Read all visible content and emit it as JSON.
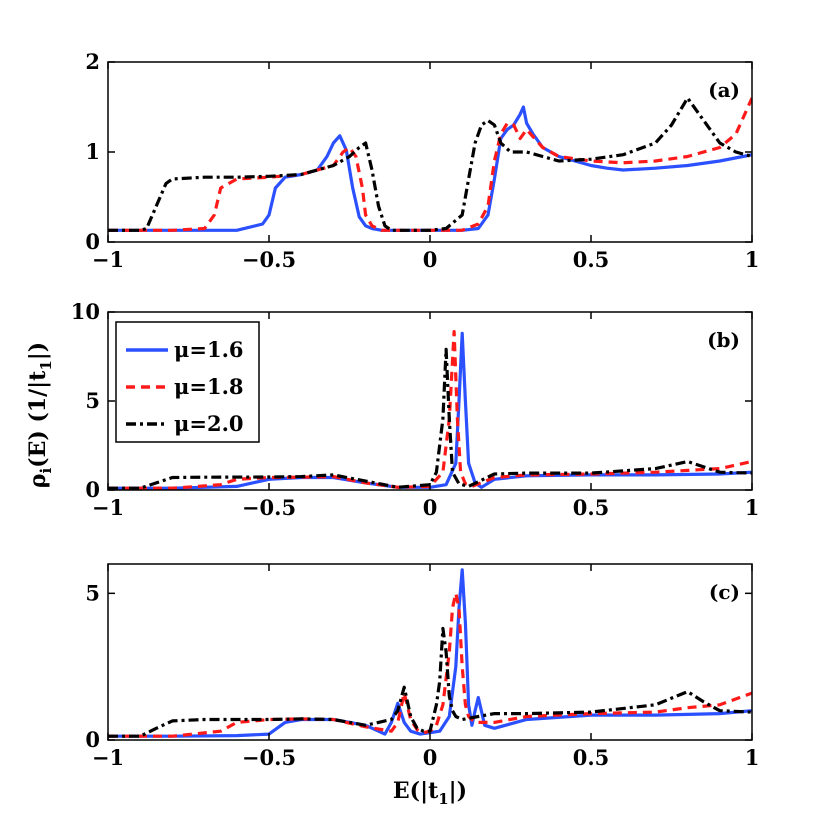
{
  "figure": {
    "ylabel_main": "ρ",
    "ylabel_sub": "i",
    "ylabel_rest": "(E) (1/|t",
    "ylabel_sub2": "1",
    "ylabel_end": "|)",
    "xlabel_main": "E(|t",
    "xlabel_sub": "1",
    "xlabel_end": "|)"
  },
  "colors": {
    "mu16": "#2b50ff",
    "mu18": "#ff1a1a",
    "mu20": "#000000"
  },
  "legend": {
    "entries": [
      {
        "label": "μ=1.6",
        "series": 0
      },
      {
        "label": "μ=1.8",
        "series": 1
      },
      {
        "label": "μ=2.0",
        "series": 2
      }
    ]
  },
  "chart_data": [
    {
      "type": "line",
      "panel": "(a)",
      "xlim": [
        -1,
        1
      ],
      "ylim": [
        0,
        2
      ],
      "xticks": [
        "-1",
        "-0.5",
        "0",
        "0.5",
        "1"
      ],
      "yticks": [
        "0",
        "1",
        "2"
      ],
      "x_tick_values": [
        -1,
        -0.5,
        0,
        0.5,
        1
      ],
      "y_tick_values": [
        0,
        1,
        2
      ],
      "series": [
        {
          "name": "μ=1.6",
          "style": "solid",
          "color": "#2b50ff",
          "x": [
            -1,
            -0.9,
            -0.8,
            -0.7,
            -0.6,
            -0.52,
            -0.5,
            -0.48,
            -0.45,
            -0.4,
            -0.35,
            -0.32,
            -0.3,
            -0.28,
            -0.26,
            -0.24,
            -0.22,
            -0.2,
            -0.18,
            -0.15,
            -0.1,
            -0.05,
            0,
            0.05,
            0.1,
            0.15,
            0.18,
            0.2,
            0.22,
            0.24,
            0.26,
            0.28,
            0.29,
            0.3,
            0.32,
            0.35,
            0.4,
            0.45,
            0.5,
            0.55,
            0.6,
            0.7,
            0.8,
            0.9,
            1
          ],
          "y": [
            0.13,
            0.13,
            0.13,
            0.13,
            0.13,
            0.2,
            0.3,
            0.6,
            0.72,
            0.75,
            0.8,
            0.95,
            1.1,
            1.18,
            1.02,
            0.6,
            0.28,
            0.18,
            0.15,
            0.13,
            0.13,
            0.13,
            0.13,
            0.13,
            0.13,
            0.15,
            0.3,
            0.7,
            1.15,
            1.25,
            1.3,
            1.42,
            1.5,
            1.32,
            1.2,
            1.05,
            0.95,
            0.9,
            0.85,
            0.82,
            0.8,
            0.82,
            0.85,
            0.9,
            0.97
          ]
        },
        {
          "name": "μ=1.8",
          "style": "dashed",
          "color": "#ff1a1a",
          "x": [
            -1,
            -0.9,
            -0.8,
            -0.7,
            -0.67,
            -0.65,
            -0.6,
            -0.5,
            -0.4,
            -0.3,
            -0.27,
            -0.25,
            -0.23,
            -0.21,
            -0.2,
            -0.18,
            -0.15,
            -0.1,
            -0.05,
            0,
            0.05,
            0.1,
            0.15,
            0.18,
            0.2,
            0.22,
            0.24,
            0.26,
            0.28,
            0.3,
            0.35,
            0.4,
            0.5,
            0.6,
            0.7,
            0.8,
            0.9,
            0.95,
            1
          ],
          "y": [
            0.13,
            0.13,
            0.13,
            0.15,
            0.3,
            0.6,
            0.7,
            0.72,
            0.75,
            0.85,
            1.0,
            1.05,
            0.95,
            0.6,
            0.3,
            0.18,
            0.13,
            0.13,
            0.13,
            0.13,
            0.13,
            0.13,
            0.2,
            0.4,
            0.9,
            1.2,
            1.32,
            1.3,
            1.15,
            1.25,
            1.05,
            0.95,
            0.9,
            0.88,
            0.9,
            0.95,
            1.05,
            1.2,
            1.6
          ]
        },
        {
          "name": "μ=2.0",
          "style": "dashdot",
          "color": "#000000",
          "x": [
            -1,
            -0.9,
            -0.88,
            -0.85,
            -0.82,
            -0.8,
            -0.7,
            -0.6,
            -0.5,
            -0.4,
            -0.3,
            -0.25,
            -0.22,
            -0.2,
            -0.18,
            -0.16,
            -0.14,
            -0.12,
            -0.1,
            -0.05,
            0,
            0.05,
            0.1,
            0.12,
            0.14,
            0.16,
            0.18,
            0.2,
            0.22,
            0.25,
            0.3,
            0.35,
            0.4,
            0.5,
            0.6,
            0.7,
            0.75,
            0.8,
            0.85,
            0.9,
            0.95,
            1
          ],
          "y": [
            0.13,
            0.13,
            0.15,
            0.4,
            0.65,
            0.7,
            0.72,
            0.72,
            0.73,
            0.75,
            0.85,
            0.95,
            1.05,
            1.1,
            0.8,
            0.4,
            0.18,
            0.13,
            0.13,
            0.13,
            0.13,
            0.15,
            0.3,
            0.7,
            1.1,
            1.3,
            1.35,
            1.3,
            1.1,
            1.0,
            1.0,
            0.95,
            0.9,
            0.92,
            0.97,
            1.1,
            1.3,
            1.6,
            1.35,
            1.1,
            1.0,
            0.95
          ]
        }
      ]
    },
    {
      "type": "line",
      "panel": "(b)",
      "xlim": [
        -1,
        1
      ],
      "ylim": [
        0,
        10
      ],
      "xticks": [
        "-1",
        "-0.5",
        "0",
        "0.5",
        "1"
      ],
      "yticks": [
        "0",
        "5",
        "10"
      ],
      "x_tick_values": [
        -1,
        -0.5,
        0,
        0.5,
        1
      ],
      "y_tick_values": [
        0,
        5,
        10
      ],
      "series": [
        {
          "name": "μ=1.6",
          "style": "solid",
          "color": "#2b50ff",
          "x": [
            -1,
            -0.8,
            -0.6,
            -0.5,
            -0.4,
            -0.3,
            -0.2,
            -0.1,
            0,
            0.05,
            0.08,
            0.09,
            0.1,
            0.11,
            0.12,
            0.14,
            0.16,
            0.2,
            0.3,
            0.5,
            0.7,
            0.9,
            1
          ],
          "y": [
            0.1,
            0.1,
            0.2,
            0.6,
            0.7,
            0.7,
            0.4,
            0.15,
            0.15,
            0.3,
            1.5,
            5.0,
            8.8,
            5.0,
            1.5,
            0.4,
            0.15,
            0.6,
            0.8,
            0.85,
            0.85,
            0.9,
            1.0
          ]
        },
        {
          "name": "μ=1.8",
          "style": "dashed",
          "color": "#ff1a1a",
          "x": [
            -1,
            -0.8,
            -0.65,
            -0.6,
            -0.5,
            -0.4,
            -0.3,
            -0.2,
            -0.1,
            0,
            0.04,
            0.06,
            0.075,
            0.085,
            0.095,
            0.11,
            0.13,
            0.2,
            0.3,
            0.5,
            0.7,
            0.8,
            0.9,
            1
          ],
          "y": [
            0.1,
            0.1,
            0.3,
            0.6,
            0.7,
            0.72,
            0.75,
            0.4,
            0.15,
            0.2,
            1.0,
            4.0,
            8.9,
            4.0,
            1.0,
            0.35,
            0.2,
            0.7,
            0.85,
            0.9,
            1.0,
            1.1,
            1.2,
            1.6
          ]
        },
        {
          "name": "μ=2.0",
          "style": "dashdot",
          "color": "#000000",
          "x": [
            -1,
            -0.9,
            -0.85,
            -0.8,
            -0.7,
            -0.5,
            -0.4,
            -0.3,
            -0.2,
            -0.1,
            0,
            0.02,
            0.04,
            0.05,
            0.06,
            0.07,
            0.09,
            0.12,
            0.2,
            0.3,
            0.5,
            0.7,
            0.8,
            0.85,
            0.9,
            1
          ],
          "y": [
            0.1,
            0.1,
            0.4,
            0.7,
            0.72,
            0.73,
            0.75,
            0.85,
            0.5,
            0.15,
            0.3,
            1.0,
            4.0,
            7.9,
            4.0,
            1.0,
            0.35,
            0.2,
            0.9,
            0.95,
            0.95,
            1.2,
            1.6,
            1.3,
            1.0,
            0.95
          ]
        }
      ]
    },
    {
      "type": "line",
      "panel": "(c)",
      "xlim": [
        -1,
        1
      ],
      "ylim": [
        0,
        6
      ],
      "xticks": [
        "-1",
        "-0.5",
        "0",
        "0.5",
        "1"
      ],
      "yticks": [
        "0",
        "5"
      ],
      "x_tick_values": [
        -1,
        -0.5,
        0,
        0.5,
        1
      ],
      "y_tick_values": [
        0,
        5
      ],
      "series": [
        {
          "name": "μ=1.6",
          "style": "solid",
          "color": "#2b50ff",
          "x": [
            -1,
            -0.8,
            -0.6,
            -0.5,
            -0.45,
            -0.4,
            -0.3,
            -0.2,
            -0.14,
            -0.12,
            -0.1,
            -0.08,
            -0.06,
            -0.03,
            0,
            0.03,
            0.06,
            0.08,
            0.09,
            0.1,
            0.11,
            0.12,
            0.13,
            0.14,
            0.15,
            0.17,
            0.2,
            0.3,
            0.5,
            0.7,
            0.9,
            1
          ],
          "y": [
            0.13,
            0.13,
            0.15,
            0.2,
            0.6,
            0.7,
            0.7,
            0.5,
            0.2,
            0.6,
            1.25,
            0.6,
            0.3,
            0.2,
            0.25,
            0.3,
            0.8,
            2.5,
            4.5,
            5.8,
            4.0,
            1.2,
            0.5,
            1.0,
            1.45,
            0.5,
            0.4,
            0.7,
            0.85,
            0.85,
            0.9,
            1.0
          ]
        },
        {
          "name": "μ=1.8",
          "style": "dashed",
          "color": "#ff1a1a",
          "x": [
            -1,
            -0.8,
            -0.65,
            -0.6,
            -0.5,
            -0.4,
            -0.3,
            -0.2,
            -0.12,
            -0.1,
            -0.08,
            -0.06,
            -0.04,
            -0.02,
            0,
            0.02,
            0.04,
            0.06,
            0.07,
            0.08,
            0.09,
            0.1,
            0.11,
            0.12,
            0.14,
            0.2,
            0.3,
            0.5,
            0.7,
            0.8,
            0.9,
            1
          ],
          "y": [
            0.13,
            0.13,
            0.3,
            0.6,
            0.7,
            0.72,
            0.7,
            0.45,
            0.3,
            0.6,
            1.6,
            0.7,
            0.35,
            0.25,
            0.3,
            0.5,
            1.2,
            3.0,
            4.5,
            5.0,
            4.5,
            2.5,
            1.2,
            0.8,
            0.6,
            0.6,
            0.8,
            0.9,
            0.95,
            1.1,
            1.2,
            1.6
          ]
        },
        {
          "name": "μ=2.0",
          "style": "dashdot",
          "color": "#000000",
          "x": [
            -1,
            -0.9,
            -0.85,
            -0.8,
            -0.7,
            -0.5,
            -0.4,
            -0.3,
            -0.2,
            -0.12,
            -0.1,
            -0.08,
            -0.06,
            -0.04,
            -0.02,
            0,
            0.02,
            0.03,
            0.04,
            0.05,
            0.06,
            0.07,
            0.08,
            0.1,
            0.15,
            0.2,
            0.3,
            0.5,
            0.7,
            0.8,
            0.85,
            0.9,
            1
          ],
          "y": [
            0.13,
            0.13,
            0.4,
            0.65,
            0.7,
            0.7,
            0.72,
            0.7,
            0.5,
            0.7,
            1.0,
            1.8,
            0.8,
            0.4,
            0.3,
            0.3,
            1.2,
            2.0,
            3.8,
            3.0,
            1.5,
            1.0,
            0.8,
            0.7,
            0.8,
            0.9,
            0.9,
            0.95,
            1.2,
            1.65,
            1.3,
            1.0,
            0.95
          ]
        }
      ]
    }
  ]
}
